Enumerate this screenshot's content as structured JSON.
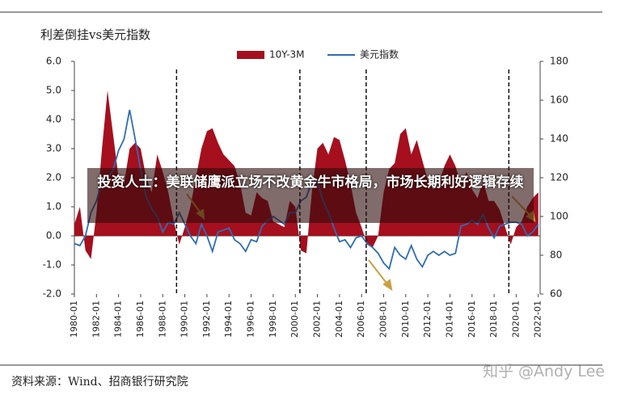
{
  "chart_data": {
    "type": "combo",
    "title": "利差倒挂vs美元指数",
    "source": "资料来源：Wind、招商银行研究院",
    "x": [
      "1980-01",
      "1980-07",
      "1981-01",
      "1981-07",
      "1982-01",
      "1982-07",
      "1983-01",
      "1983-07",
      "1984-01",
      "1984-07",
      "1985-01",
      "1985-07",
      "1986-01",
      "1986-07",
      "1987-01",
      "1987-07",
      "1988-01",
      "1988-07",
      "1989-01",
      "1989-07",
      "1990-01",
      "1990-07",
      "1991-01",
      "1991-07",
      "1992-01",
      "1992-07",
      "1993-01",
      "1993-07",
      "1994-01",
      "1994-07",
      "1995-01",
      "1995-07",
      "1996-01",
      "1996-07",
      "1997-01",
      "1997-07",
      "1998-01",
      "1998-07",
      "1999-01",
      "1999-07",
      "2000-01",
      "2000-07",
      "2001-01",
      "2001-07",
      "2002-01",
      "2002-07",
      "2003-01",
      "2003-07",
      "2004-01",
      "2004-07",
      "2005-01",
      "2005-07",
      "2006-01",
      "2006-07",
      "2007-01",
      "2007-07",
      "2008-01",
      "2008-07",
      "2009-01",
      "2009-07",
      "2010-01",
      "2010-07",
      "2011-01",
      "2011-07",
      "2012-01",
      "2012-07",
      "2013-01",
      "2013-07",
      "2014-01",
      "2014-07",
      "2015-01",
      "2015-07",
      "2016-01",
      "2016-07",
      "2017-01",
      "2017-07",
      "2018-01",
      "2018-07",
      "2019-01",
      "2019-07",
      "2020-01",
      "2020-07",
      "2021-01",
      "2021-07",
      "2022-01"
    ],
    "series": [
      {
        "name": "10Y-3M",
        "kind": "area",
        "color": "#a50f1e",
        "values": [
          0.4,
          1.0,
          -0.5,
          -0.8,
          0.8,
          3.0,
          5.0,
          3.5,
          2.0,
          1.8,
          3.0,
          3.2,
          3.0,
          2.0,
          1.5,
          2.8,
          2.2,
          1.5,
          0.5,
          -0.3,
          0.3,
          1.0,
          2.0,
          3.0,
          3.6,
          3.7,
          3.2,
          2.8,
          2.6,
          2.4,
          1.8,
          0.8,
          0.7,
          1.5,
          1.3,
          1.2,
          0.5,
          0.4,
          0.3,
          1.2,
          1.0,
          -0.5,
          -0.6,
          1.5,
          3.0,
          3.2,
          2.8,
          3.4,
          3.3,
          2.6,
          1.8,
          0.8,
          0.3,
          -0.3,
          -0.4,
          0.0,
          1.5,
          2.3,
          2.5,
          3.5,
          3.7,
          2.8,
          3.3,
          2.6,
          1.9,
          1.6,
          1.8,
          2.4,
          2.8,
          2.4,
          1.8,
          2.2,
          1.6,
          1.3,
          1.9,
          1.2,
          1.2,
          0.9,
          0.3,
          -0.3,
          0.3,
          0.5,
          1.0,
          1.3,
          1.5
        ]
      },
      {
        "name": "美元指数",
        "kind": "line",
        "axis": "y2",
        "color": "#2e6db4",
        "values": [
          86,
          85,
          90,
          102,
          108,
          118,
          120,
          124,
          134,
          140,
          155,
          140,
          124,
          110,
          104,
          100,
          92,
          97,
          96,
          102,
          96,
          90,
          86,
          96,
          90,
          82,
          92,
          93,
          94,
          88,
          86,
          82,
          88,
          87,
          95,
          98,
          100,
          98,
          96,
          102,
          102,
          108,
          110,
          118,
          118,
          108,
          102,
          94,
          87,
          88,
          84,
          89,
          90,
          86,
          84,
          81,
          76,
          73,
          84,
          80,
          78,
          85,
          78,
          74,
          80,
          82,
          80,
          82,
          80,
          81,
          95,
          96,
          98,
          96,
          101,
          94,
          89,
          95,
          96,
          97,
          97,
          96,
          90,
          92,
          96
        ]
      }
    ],
    "xlim": [
      "1980-01",
      "2022-03"
    ],
    "xticks": [
      "1980-01",
      "1982-01",
      "1984-01",
      "1986-01",
      "1988-01",
      "1990-01",
      "1992-01",
      "1994-01",
      "1996-01",
      "1998-01",
      "2000-01",
      "2002-01",
      "2004-01",
      "2006-01",
      "2008-01",
      "2010-01",
      "2012-01",
      "2014-01",
      "2016-01",
      "2018-01",
      "2020-01",
      "2022-01"
    ],
    "ylim": [
      -2,
      6
    ],
    "yticks": [
      {
        "value": -2,
        "label": "-2.0"
      },
      {
        "value": -1,
        "label": "-1.0"
      },
      {
        "value": 0,
        "label": "0.0"
      },
      {
        "value": 1,
        "label": "1.0"
      },
      {
        "value": 2,
        "label": "2.0"
      },
      {
        "value": 3,
        "label": "3.0"
      },
      {
        "value": 4,
        "label": "4.0"
      },
      {
        "value": 5,
        "label": "5.0"
      },
      {
        "value": 6,
        "label": "6.0"
      }
    ],
    "y2lim": [
      60,
      180
    ],
    "y2ticks": [
      60,
      80,
      100,
      120,
      140,
      160,
      180
    ],
    "vlines": [
      "1989-04",
      "2000-06",
      "2006-06",
      "2019-05"
    ],
    "legend": "top"
  },
  "overlay": {
    "headline": "投资人士：美联储鹰派立场不改黄金牛市格局，市场长期利好逻辑存续",
    "watermark": "知乎 @Andy Lee"
  }
}
